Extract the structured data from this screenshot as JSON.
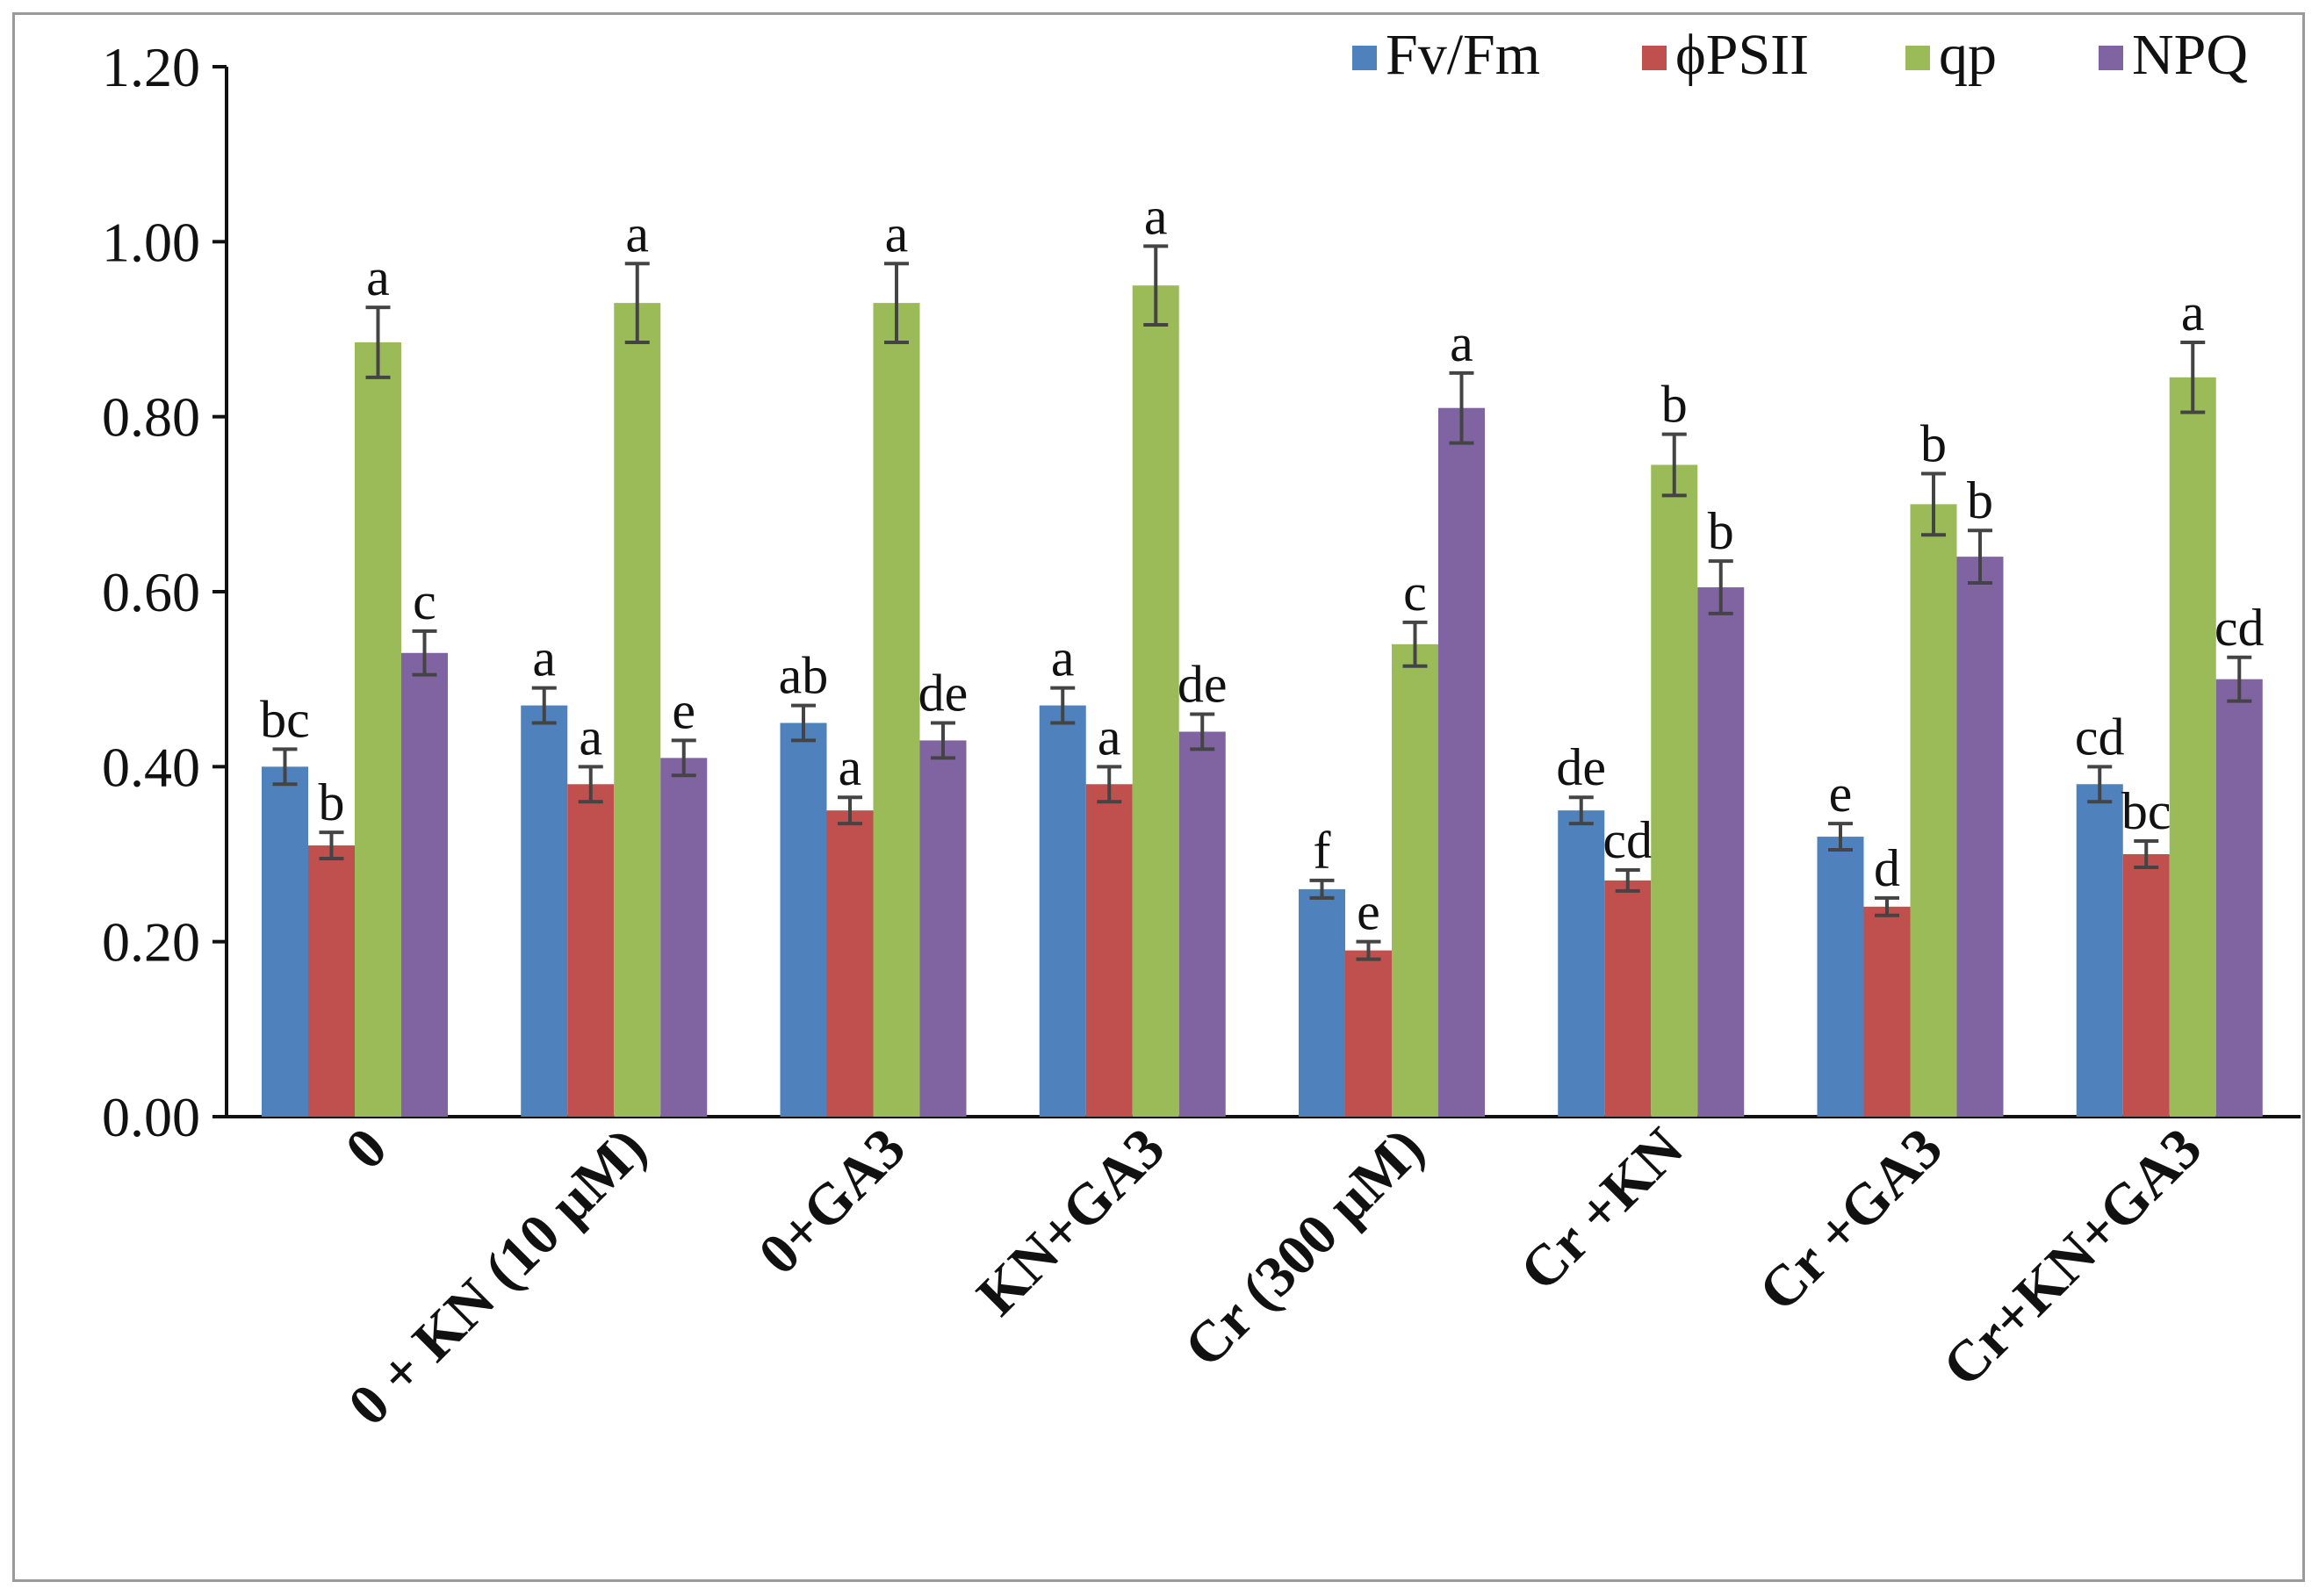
{
  "chart_data": {
    "type": "bar",
    "title": "",
    "xlabel": "",
    "ylabel": "",
    "ylim": [
      0,
      1.2
    ],
    "yticks": [
      "0.00",
      "0.20",
      "0.40",
      "0.60",
      "0.80",
      "1.00",
      "1.20"
    ],
    "grid": false,
    "legend_position": "top-right",
    "categories": [
      "0",
      "0 + KN (10 µM)",
      "0+GA3",
      "KN+GA3",
      "Cr (300 µM)",
      "Cr +KN",
      "Cr +GA3",
      "Cr+KN+GA3"
    ],
    "series": [
      {
        "name": "Fv/Fm",
        "color": "#4f81bd",
        "values": [
          0.4,
          0.47,
          0.45,
          0.47,
          0.26,
          0.35,
          0.32,
          0.38
        ],
        "errors": [
          0.02,
          0.02,
          0.02,
          0.02,
          0.01,
          0.015,
          0.015,
          0.02
        ],
        "letters": [
          "bc",
          "a",
          "ab",
          "a",
          "f",
          "de",
          "e",
          "cd"
        ]
      },
      {
        "name": "ϕPSII",
        "color": "#c0504d",
        "values": [
          0.31,
          0.38,
          0.35,
          0.38,
          0.19,
          0.27,
          0.24,
          0.3
        ],
        "errors": [
          0.015,
          0.02,
          0.015,
          0.02,
          0.01,
          0.012,
          0.01,
          0.015
        ],
        "letters": [
          "b",
          "a",
          "a",
          "a",
          "e",
          "cd",
          "d",
          "bc"
        ]
      },
      {
        "name": "qp",
        "color": "#9bbb59",
        "values": [
          0.885,
          0.93,
          0.93,
          0.95,
          0.54,
          0.745,
          0.7,
          0.845
        ],
        "errors": [
          0.04,
          0.045,
          0.045,
          0.045,
          0.025,
          0.035,
          0.035,
          0.04
        ],
        "letters": [
          "a",
          "a",
          "a",
          "a",
          "c",
          "b",
          "b",
          "a"
        ]
      },
      {
        "name": "NPQ",
        "color": "#8064a2",
        "values": [
          0.53,
          0.41,
          0.43,
          0.44,
          0.81,
          0.605,
          0.64,
          0.5
        ],
        "errors": [
          0.025,
          0.02,
          0.02,
          0.02,
          0.04,
          0.03,
          0.03,
          0.025
        ],
        "letters": [
          "c",
          "e",
          "de",
          "de",
          "a",
          "b",
          "b",
          "cd"
        ]
      }
    ]
  }
}
